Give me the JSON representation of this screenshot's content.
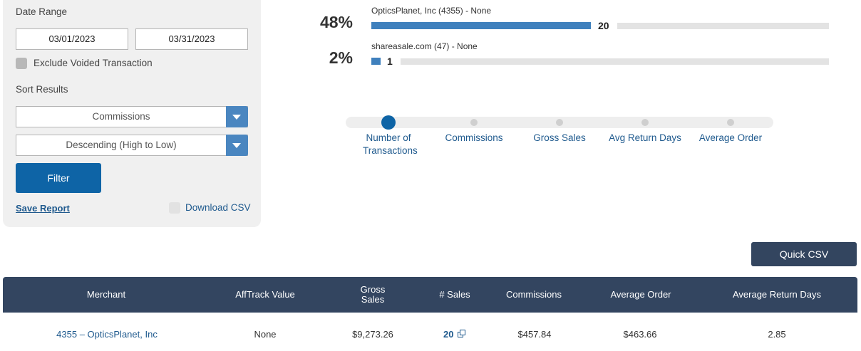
{
  "filters": {
    "date_range_label": "Date Range",
    "start_date": "03/01/2023",
    "end_date": "03/31/2023",
    "exclude_voided_label": "Exclude Voided Transaction",
    "sort_results_label": "Sort Results",
    "sort_field_selected": "Commissions",
    "sort_order_selected": "Descending (High to Low)",
    "filter_label": "Filter",
    "save_report_label": "Save Report",
    "download_csv_label": "Download CSV"
  },
  "chart": {
    "bars": [
      {
        "percent": "48%",
        "title": "OpticsPlanet, Inc (4355) - None",
        "value": "20"
      },
      {
        "percent": "2%",
        "title": "shareasale.com (47) - None",
        "value": "1"
      }
    ]
  },
  "slider": {
    "stops": [
      "Number of Transactions",
      "Commissions",
      "Gross Sales",
      "Avg Return Days",
      "Average Order"
    ],
    "selected": "Number of Transactions"
  },
  "table": {
    "quick_csv_label": "Quick CSV",
    "headers": [
      "Merchant",
      "AffTrack Value",
      "Gross Sales",
      "# Sales",
      "Commissions",
      "Average Order",
      "Average Return Days"
    ],
    "rows": [
      {
        "merchant": "4355 – OpticsPlanet, Inc",
        "afftrack_value": "None",
        "gross_sales": "$9,273.26",
        "sales": "20",
        "commissions": "$457.84",
        "average_order": "$463.66",
        "average_return_days": "2.85"
      }
    ]
  },
  "colors": {
    "primary_blue": "#0e64a6",
    "bar_blue": "#3f80bd",
    "header_navy": "#334560",
    "link_blue": "#1f5a8e"
  }
}
